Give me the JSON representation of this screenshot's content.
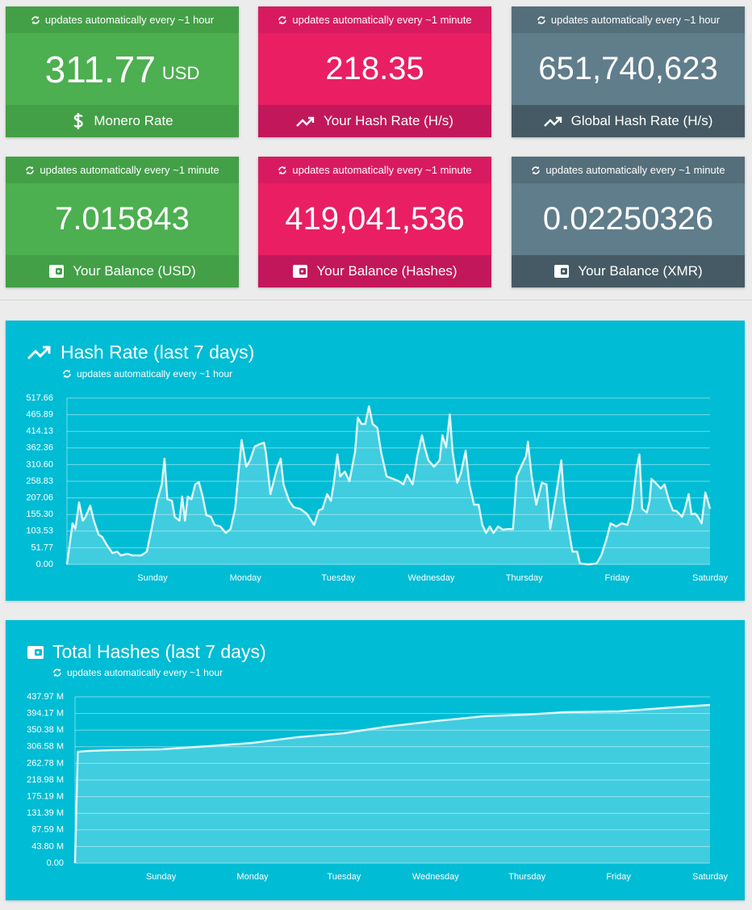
{
  "cards": [
    {
      "update_note": "updates automatically every ~1 hour",
      "value": "311.77",
      "unit": "USD",
      "label": "Monero Rate"
    },
    {
      "update_note": "updates automatically every ~1 minute",
      "value": "218.35",
      "label": "Your Hash Rate (H/s)"
    },
    {
      "update_note": "updates automatically every ~1 hour",
      "value": "651,740,623",
      "label": "Global Hash Rate (H/s)"
    },
    {
      "update_note": "updates automatically every ~1 minute",
      "value": "7.015843",
      "label": "Your Balance (USD)"
    },
    {
      "update_note": "updates automatically every ~1 minute",
      "value": "419,041,536",
      "label": "Your Balance (Hashes)"
    },
    {
      "update_note": "updates automatically every ~1 minute",
      "value": "0.02250326",
      "label": "Your Balance (XMR)"
    }
  ],
  "chart_data": [
    {
      "type": "area",
      "title": "Hash Rate (last 7 days)",
      "subtitle": "updates automatically every ~1 hour",
      "color": "#ffffff",
      "grid": true,
      "x": [
        -0.92,
        -0.86,
        -0.83,
        -0.79,
        -0.75,
        -0.72,
        -0.67,
        -0.63,
        -0.58,
        -0.54,
        -0.49,
        -0.43,
        -0.38,
        -0.34,
        -0.27,
        -0.21,
        -0.12,
        -0.06,
        -0.01,
        0.05,
        0.1,
        0.13,
        0.16,
        0.21,
        0.24,
        0.29,
        0.32,
        0.35,
        0.38,
        0.42,
        0.46,
        0.5,
        0.54,
        0.58,
        0.63,
        0.67,
        0.73,
        0.79,
        0.84,
        0.89,
        0.93,
        0.96,
        1.01,
        1.05,
        1.1,
        1.15,
        1.2,
        1.22,
        1.27,
        1.34,
        1.38,
        1.41,
        1.47,
        1.52,
        1.59,
        1.66,
        1.71,
        1.74,
        1.79,
        1.83,
        1.88,
        1.92,
        1.95,
        1.99,
        2.02,
        2.07,
        2.12,
        2.18,
        2.21,
        2.25,
        2.29,
        2.33,
        2.37,
        2.42,
        2.46,
        2.52,
        2.59,
        2.65,
        2.7,
        2.74,
        2.8,
        2.85,
        2.9,
        2.93,
        2.97,
        3.03,
        3.09,
        3.12,
        3.16,
        3.2,
        3.23,
        3.28,
        3.32,
        3.37,
        3.41,
        3.46,
        3.51,
        3.55,
        3.59,
        3.63,
        3.67,
        3.72,
        3.77,
        3.82,
        3.88,
        3.92,
        3.98,
        4.02,
        4.04,
        4.08,
        4.13,
        4.19,
        4.24,
        4.28,
        4.34,
        4.4,
        4.43,
        4.47,
        4.52,
        4.57,
        4.6,
        4.69,
        4.78,
        4.83,
        4.88,
        4.93,
        4.99,
        5.05,
        5.11,
        5.16,
        5.21,
        5.24,
        5.27,
        5.32,
        5.35,
        5.37,
        5.43,
        5.47,
        5.51,
        5.56,
        5.6,
        5.64,
        5.7,
        5.73,
        5.77,
        5.8,
        5.84,
        5.87,
        5.91,
        5.95,
        6.0
      ],
      "values": [
        0,
        128,
        110,
        193,
        136,
        148,
        183,
        136,
        93,
        85,
        60,
        35,
        40,
        28,
        33,
        28,
        28,
        40,
        110,
        198,
        249,
        329,
        203,
        198,
        148,
        136,
        211,
        136,
        211,
        203,
        249,
        256,
        211,
        153,
        148,
        123,
        118,
        98,
        110,
        173,
        299,
        387,
        304,
        324,
        367,
        374,
        379,
        349,
        219,
        299,
        329,
        249,
        198,
        178,
        173,
        158,
        136,
        123,
        168,
        173,
        219,
        198,
        249,
        342,
        274,
        289,
        259,
        349,
        457,
        437,
        437,
        492,
        437,
        425,
        349,
        274,
        266,
        259,
        249,
        279,
        249,
        337,
        402,
        364,
        324,
        304,
        324,
        402,
        364,
        467,
        349,
        254,
        284,
        354,
        249,
        186,
        186,
        123,
        98,
        118,
        98,
        118,
        108,
        110,
        110,
        274,
        312,
        337,
        382,
        274,
        186,
        254,
        249,
        110,
        211,
        324,
        198,
        123,
        40,
        40,
        3,
        0,
        3,
        28,
        73,
        128,
        118,
        128,
        123,
        173,
        299,
        342,
        173,
        161,
        198,
        266,
        249,
        236,
        249,
        198,
        168,
        166,
        148,
        173,
        219,
        156,
        158,
        148,
        128,
        224,
        173
      ],
      "xlim": [
        -0.92,
        6
      ],
      "xticks": [
        {
          "value": 0,
          "label": "Sunday"
        },
        {
          "value": 1,
          "label": "Monday"
        },
        {
          "value": 2,
          "label": "Tuesday"
        },
        {
          "value": 3,
          "label": "Wednesday"
        },
        {
          "value": 4,
          "label": "Thursday"
        },
        {
          "value": 5,
          "label": "Friday"
        },
        {
          "value": 6,
          "label": "Saturday"
        }
      ],
      "ylim": [
        0,
        517.66
      ],
      "yticks": [
        {
          "value": 0,
          "label": "0.00"
        },
        51.77,
        103.53,
        {
          "value": 155.3,
          "label": "155.30"
        },
        207.06,
        258.83,
        {
          "value": 310.6,
          "label": "310.60"
        },
        362.36,
        414.13,
        465.89,
        517.66
      ]
    },
    {
      "type": "area",
      "title": "Total Hashes (last 7 days)",
      "subtitle": "updates automatically every ~1 hour",
      "color": "#ffffff",
      "grid": true,
      "x": [
        -0.94,
        -0.91,
        -0.79,
        -0.53,
        0,
        0.53,
        1,
        1.49,
        2,
        2.46,
        3,
        3.53,
        4,
        4.41,
        5,
        5.48,
        6
      ],
      "values": [
        0,
        293.4,
        295.5,
        297.6,
        299.8,
        308.3,
        316.8,
        331.7,
        342.3,
        359.3,
        374.2,
        386.9,
        391.2,
        397.6,
        399.7,
        408.2,
        416.7
      ],
      "xlim": [
        -0.94,
        6
      ],
      "xticks": [
        {
          "value": 0,
          "label": "Sunday"
        },
        {
          "value": 1,
          "label": "Monday"
        },
        {
          "value": 2,
          "label": "Tuesday"
        },
        {
          "value": 3,
          "label": "Wednesday"
        },
        {
          "value": 4,
          "label": "Thursday"
        },
        {
          "value": 5,
          "label": "Friday"
        },
        {
          "value": 6,
          "label": "Saturday"
        }
      ],
      "ylim": [
        0,
        437.97
      ],
      "yticks": [
        {
          "value": 0,
          "label": "0.00"
        },
        {
          "value": 43.8,
          "label": "43.80 M"
        },
        {
          "value": 87.59,
          "label": "87.59 M"
        },
        {
          "value": 131.39,
          "label": "131.39 M"
        },
        {
          "value": 175.19,
          "label": "175.19 M"
        },
        {
          "value": 218.98,
          "label": "218.98 M"
        },
        {
          "value": 262.78,
          "label": "262.78 M"
        },
        {
          "value": 306.58,
          "label": "306.58 M"
        },
        {
          "value": 350.38,
          "label": "350.38 M"
        },
        {
          "value": 394.17,
          "label": "394.17 M"
        },
        {
          "value": 437.97,
          "label": "437.97 M"
        }
      ]
    }
  ]
}
